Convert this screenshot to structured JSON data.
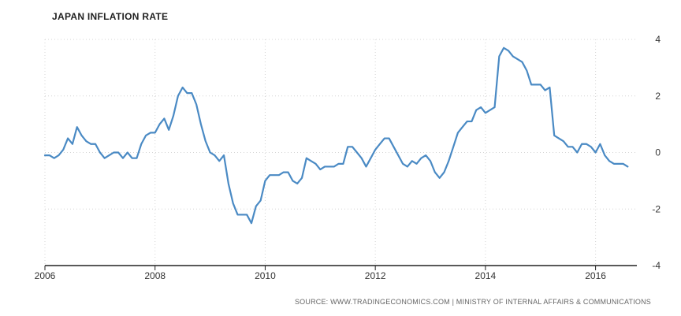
{
  "chart_data": {
    "type": "line",
    "title": "JAPAN INFLATION RATE",
    "source": "SOURCE: WWW.TRADINGECONOMICS.COM | MINISTRY OF INTERNAL AFFAIRS & COMMUNICATIONS",
    "xlabel": "",
    "ylabel": "",
    "xlim": [
      2006.0,
      2016.75
    ],
    "ylim": [
      -4,
      4
    ],
    "x_ticks": [
      2006,
      2008,
      2010,
      2012,
      2014,
      2016
    ],
    "x_tick_labels": [
      "2006",
      "2008",
      "2010",
      "2012",
      "2014",
      "2016"
    ],
    "y_ticks": [
      4,
      2,
      0,
      -2,
      -4
    ],
    "y_tick_labels": [
      "4",
      "2",
      "0",
      "-2",
      "-4"
    ],
    "grid": true,
    "y_axis_position": "right",
    "line_color": "#4a8ac4",
    "series": [
      {
        "name": "",
        "x": [
          2006.0,
          2006.083,
          2006.167,
          2006.25,
          2006.333,
          2006.417,
          2006.5,
          2006.583,
          2006.667,
          2006.75,
          2006.833,
          2006.917,
          2007.0,
          2007.083,
          2007.167,
          2007.25,
          2007.333,
          2007.417,
          2007.5,
          2007.583,
          2007.667,
          2007.75,
          2007.833,
          2007.917,
          2008.0,
          2008.083,
          2008.167,
          2008.25,
          2008.333,
          2008.417,
          2008.5,
          2008.583,
          2008.667,
          2008.75,
          2008.833,
          2008.917,
          2009.0,
          2009.083,
          2009.167,
          2009.25,
          2009.333,
          2009.417,
          2009.5,
          2009.583,
          2009.667,
          2009.75,
          2009.833,
          2009.917,
          2010.0,
          2010.083,
          2010.167,
          2010.25,
          2010.333,
          2010.417,
          2010.5,
          2010.583,
          2010.667,
          2010.75,
          2010.833,
          2010.917,
          2011.0,
          2011.083,
          2011.167,
          2011.25,
          2011.333,
          2011.417,
          2011.5,
          2011.583,
          2011.667,
          2011.75,
          2011.833,
          2011.917,
          2012.0,
          2012.083,
          2012.167,
          2012.25,
          2012.333,
          2012.417,
          2012.5,
          2012.583,
          2012.667,
          2012.75,
          2012.833,
          2012.917,
          2013.0,
          2013.083,
          2013.167,
          2013.25,
          2013.333,
          2013.417,
          2013.5,
          2013.583,
          2013.667,
          2013.75,
          2013.833,
          2013.917,
          2014.0,
          2014.083,
          2014.167,
          2014.25,
          2014.333,
          2014.417,
          2014.5,
          2014.583,
          2014.667,
          2014.75,
          2014.833,
          2014.917,
          2015.0,
          2015.083,
          2015.167,
          2015.25,
          2015.333,
          2015.417,
          2015.5,
          2015.583,
          2015.667,
          2015.75,
          2015.833,
          2015.917,
          2016.0,
          2016.083,
          2016.167,
          2016.25,
          2016.333,
          2016.417,
          2016.5,
          2016.583
        ],
        "values": [
          -0.1,
          -0.1,
          -0.2,
          -0.1,
          0.1,
          0.5,
          0.3,
          0.9,
          0.6,
          0.4,
          0.3,
          0.3,
          0.0,
          -0.2,
          -0.1,
          0.0,
          0.0,
          -0.2,
          0.0,
          -0.2,
          -0.2,
          0.3,
          0.6,
          0.7,
          0.7,
          1.0,
          1.2,
          0.8,
          1.3,
          2.0,
          2.3,
          2.1,
          2.1,
          1.7,
          1.0,
          0.4,
          0.0,
          -0.1,
          -0.3,
          -0.1,
          -1.1,
          -1.8,
          -2.2,
          -2.2,
          -2.2,
          -2.5,
          -1.9,
          -1.7,
          -1.0,
          -0.8,
          -0.8,
          -0.8,
          -0.7,
          -0.7,
          -1.0,
          -1.1,
          -0.9,
          -0.2,
          -0.3,
          -0.4,
          -0.6,
          -0.5,
          -0.5,
          -0.5,
          -0.4,
          -0.4,
          0.2,
          0.2,
          0.0,
          -0.2,
          -0.5,
          -0.2,
          0.1,
          0.3,
          0.5,
          0.5,
          0.2,
          -0.1,
          -0.4,
          -0.5,
          -0.3,
          -0.4,
          -0.2,
          -0.1,
          -0.3,
          -0.7,
          -0.9,
          -0.7,
          -0.3,
          0.2,
          0.7,
          0.9,
          1.1,
          1.1,
          1.5,
          1.6,
          1.4,
          1.5,
          1.6,
          3.4,
          3.7,
          3.6,
          3.4,
          3.3,
          3.2,
          2.9,
          2.4,
          2.4,
          2.4,
          2.2,
          2.3,
          0.6,
          0.5,
          0.4,
          0.2,
          0.2,
          0.0,
          0.3,
          0.3,
          0.2,
          0.0,
          0.3,
          -0.1,
          -0.3,
          -0.4,
          -0.4,
          -0.4,
          -0.5
        ]
      }
    ]
  }
}
